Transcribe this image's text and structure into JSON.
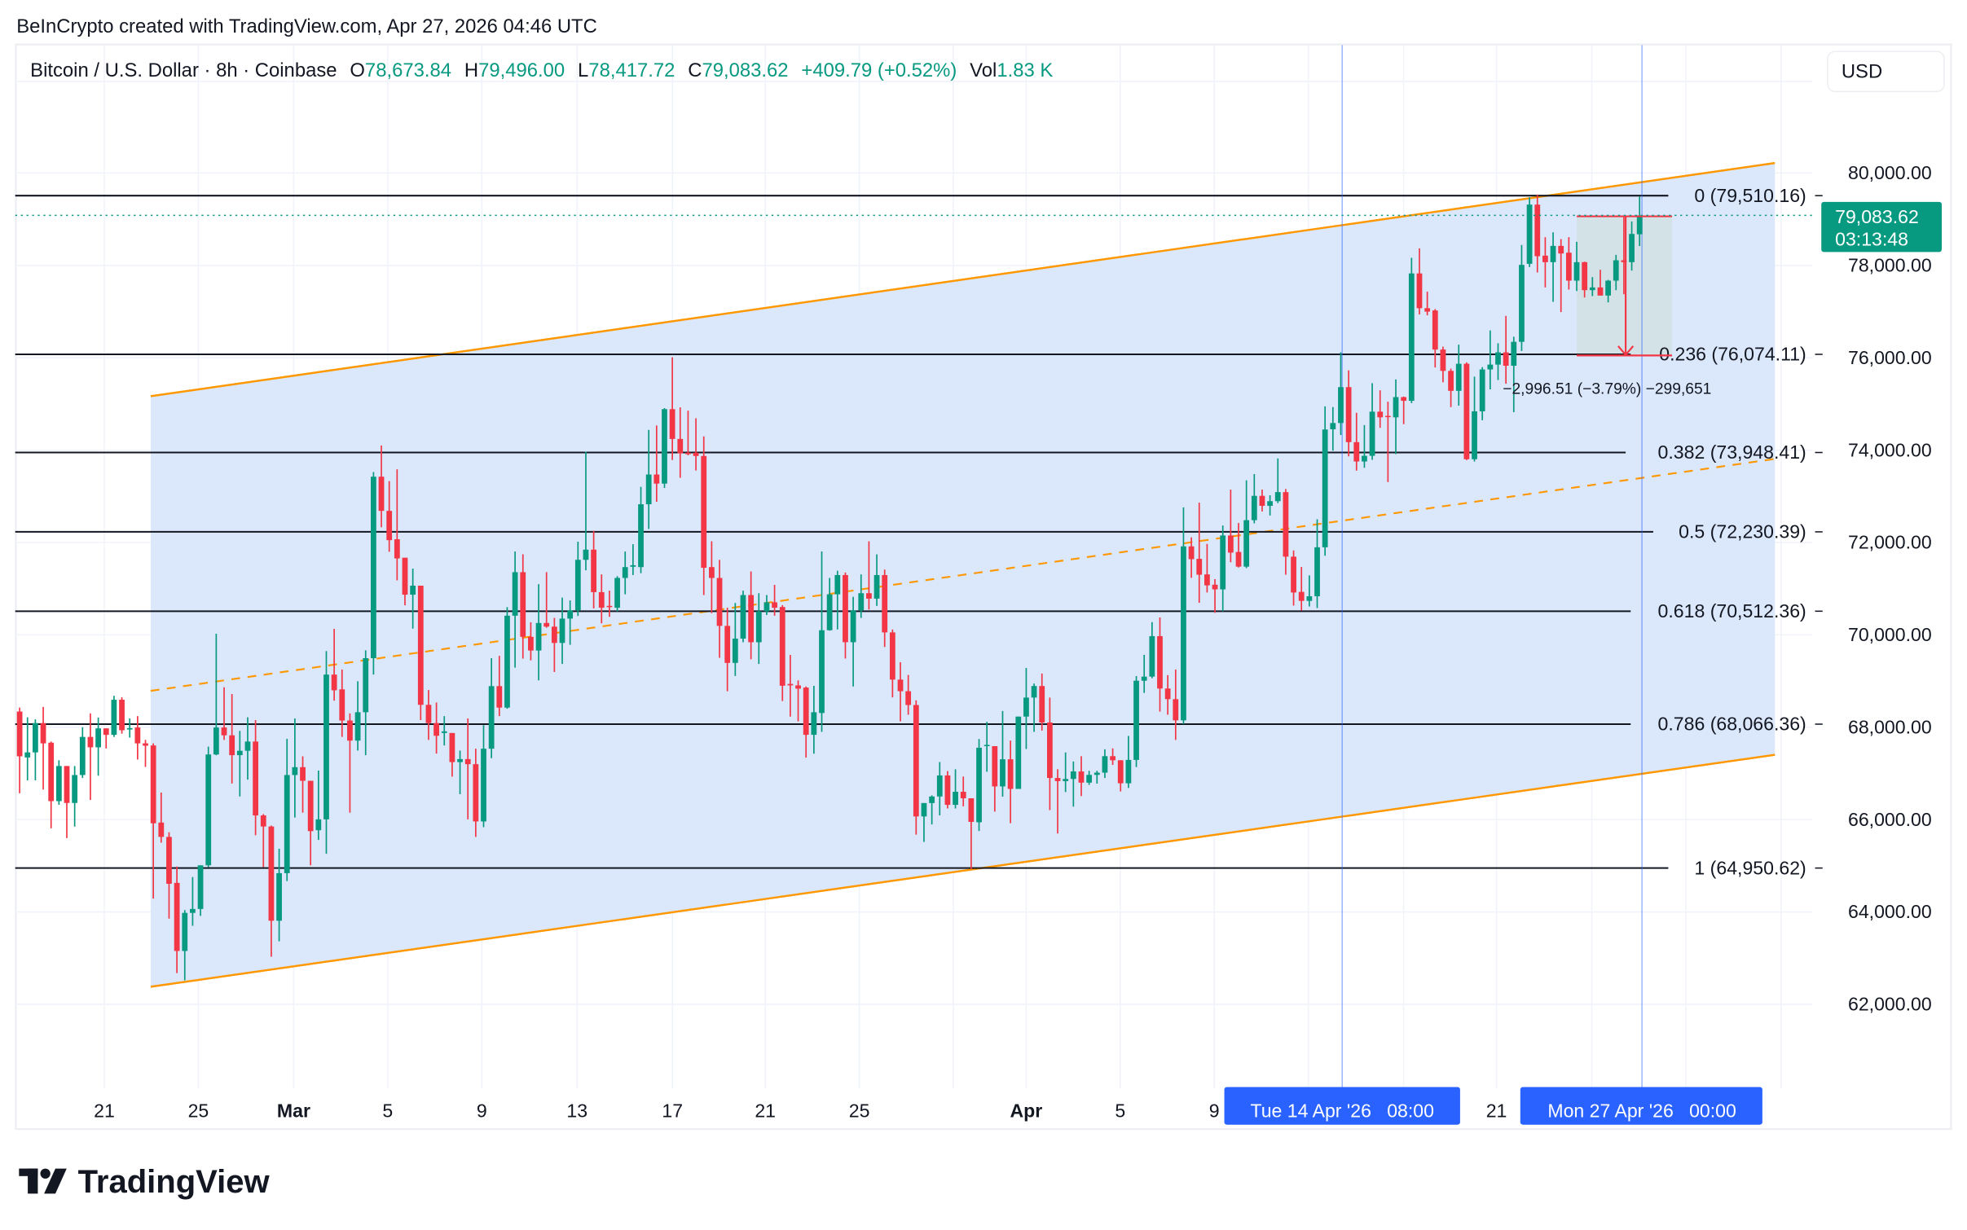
{
  "header": {
    "attribution": "BeInCrypto created with TradingView.com, Apr 27, 2026 04:46 UTC"
  },
  "legend": {
    "symbol": "Bitcoin / U.S. Dollar · 8h · Coinbase",
    "o_label": "O",
    "o_value": "78,673.84",
    "h_label": "H",
    "h_value": "79,496.00",
    "l_label": "L",
    "l_value": "78,417.72",
    "c_label": "C",
    "c_value": "79,083.62",
    "change": "+409.79 (+0.52%)",
    "vol_label": "Vol",
    "vol_value": "1.83 K"
  },
  "currency_button": "USD",
  "current_price": {
    "value": 79083.62,
    "label": "79,083.62",
    "countdown": "03:13:48"
  },
  "measure": {
    "text": "−2,996.51 (−3.79%) −299,651"
  },
  "crosshair_labels": [
    "Tue 14 Apr '26   08:00",
    "Mon 27 Apr '26   00:00"
  ],
  "time_axis": [
    "21",
    "25",
    "Mar",
    "5",
    "9",
    "13",
    "17",
    "21",
    "25",
    "Apr",
    "5",
    "9",
    "21"
  ],
  "fib_levels": [
    {
      "ratio": 0,
      "price": 79510.16,
      "label": "0 (79,510.16)"
    },
    {
      "ratio": 0.236,
      "price": 76074.11,
      "label": "0.236 (76,074.11)"
    },
    {
      "ratio": 0.382,
      "price": 73948.41,
      "label": "0.382 (73,948.41)"
    },
    {
      "ratio": 0.5,
      "price": 72230.39,
      "label": "0.5 (72,230.39)"
    },
    {
      "ratio": 0.618,
      "price": 70512.36,
      "label": "0.618 (70,512.36)"
    },
    {
      "ratio": 0.786,
      "price": 68066.36,
      "label": "0.786 (68,066.36)"
    },
    {
      "ratio": 1,
      "price": 64950.62,
      "label": "1 (64,950.62)"
    }
  ],
  "logo": "TradingView",
  "colors": {
    "up": "#089981",
    "down": "#f23645",
    "channel": "#ff9800",
    "accent": "#2962ff"
  },
  "chart_data": {
    "type": "candlestick",
    "title": "Bitcoin / U.S. Dollar · 8h · Coinbase",
    "interval": "8h",
    "first_candle": "Feb 17 2026 08:00",
    "last_candle": "Apr 27 2026 00:00",
    "ylim": [
      60500,
      81500
    ],
    "y_ticks": [
      80000,
      78000,
      76000,
      74000,
      72000,
      70000,
      68000,
      66000,
      64000,
      62000
    ],
    "y_tick_labels": [
      "80,000.00",
      "78,000.00",
      "76,000.00",
      "74,000.00",
      "72,000.00",
      "70,000.00",
      "68,000.00",
      "66,000.00",
      "64,000.00",
      "62,000.00"
    ],
    "ohlc_fields": [
      "open",
      "high",
      "low",
      "close"
    ],
    "ohlc": [
      [
        68340,
        68425,
        66570,
        67370
      ],
      [
        67345,
        68215,
        66850,
        67455
      ],
      [
        67455,
        68170,
        66850,
        68090
      ],
      [
        68090,
        68440,
        66650,
        67650
      ],
      [
        67665,
        67690,
        65810,
        66400
      ],
      [
        66400,
        67285,
        66320,
        67160
      ],
      [
        67160,
        67160,
        65600,
        66360
      ],
      [
        66360,
        67160,
        65850,
        66965
      ],
      [
        66965,
        68000,
        66900,
        67790
      ],
      [
        67790,
        68300,
        66425,
        67565
      ],
      [
        67565,
        68210,
        66950,
        67975
      ],
      [
        67975,
        67975,
        67540,
        67835
      ],
      [
        67835,
        68680,
        67790,
        68595
      ],
      [
        68595,
        68650,
        67860,
        67935
      ],
      [
        67950,
        68190,
        67775,
        67980
      ],
      [
        67995,
        68240,
        67300,
        67650
      ],
      [
        67650,
        67725,
        67140,
        67600
      ],
      [
        67605,
        67650,
        64290,
        65920
      ],
      [
        65935,
        66585,
        65500,
        65625
      ],
      [
        65625,
        65725,
        63855,
        64610
      ],
      [
        64630,
        64985,
        62675,
        63155
      ],
      [
        63155,
        64040,
        62520,
        63980
      ],
      [
        63980,
        64755,
        63700,
        64065
      ],
      [
        64065,
        65010,
        63915,
        65010
      ],
      [
        65010,
        67580,
        64970,
        67410
      ],
      [
        67410,
        70025,
        67395,
        67995
      ],
      [
        67995,
        68865,
        67725,
        67825
      ],
      [
        67825,
        68720,
        66780,
        67395
      ],
      [
        67395,
        67920,
        66500,
        67490
      ],
      [
        67490,
        68215,
        66865,
        67690
      ],
      [
        67690,
        68155,
        65660,
        66090
      ],
      [
        66090,
        66120,
        64970,
        65850
      ],
      [
        65850,
        65870,
        63030,
        63810
      ],
      [
        63810,
        65370,
        63365,
        64840
      ],
      [
        64840,
        67750,
        64670,
        66965
      ],
      [
        66965,
        68190,
        66045,
        67135
      ],
      [
        67135,
        67370,
        66150,
        66840
      ],
      [
        66840,
        66840,
        65010,
        65750
      ],
      [
        65770,
        67060,
        65560,
        66005
      ],
      [
        66005,
        69650,
        65260,
        69140
      ],
      [
        69140,
        70130,
        68575,
        68800
      ],
      [
        68820,
        69250,
        67790,
        68145
      ],
      [
        68145,
        68300,
        66150,
        67710
      ],
      [
        67710,
        68995,
        67495,
        68325
      ],
      [
        68325,
        69665,
        67395,
        69495
      ],
      [
        69495,
        73525,
        69140,
        73425
      ],
      [
        73425,
        74100,
        72330,
        72685
      ],
      [
        72685,
        73330,
        71800,
        72050
      ],
      [
        72070,
        73585,
        71180,
        71655
      ],
      [
        71670,
        71670,
        70640,
        70870
      ],
      [
        70870,
        71435,
        70135,
        71065
      ],
      [
        71065,
        71065,
        68155,
        68485
      ],
      [
        68485,
        68805,
        67725,
        68090
      ],
      [
        68090,
        68535,
        67430,
        67815
      ],
      [
        67875,
        68240,
        67605,
        67910
      ],
      [
        67875,
        67875,
        66930,
        67245
      ],
      [
        67245,
        67495,
        66550,
        67310
      ],
      [
        67310,
        68190,
        66005,
        67200
      ],
      [
        67200,
        67535,
        65625,
        65960
      ],
      [
        65960,
        68045,
        65835,
        67535
      ],
      [
        67535,
        69495,
        67330,
        68890
      ],
      [
        68890,
        69545,
        68240,
        68425
      ],
      [
        68425,
        70600,
        68400,
        70415
      ],
      [
        70415,
        71805,
        69290,
        71357
      ],
      [
        71357,
        71743,
        69487,
        69958
      ],
      [
        69958,
        70273,
        69447,
        69660
      ],
      [
        69660,
        71098,
        69015,
        70257
      ],
      [
        70257,
        71358,
        70155,
        70178
      ],
      [
        70178,
        70367,
        69196,
        69825
      ],
      [
        69825,
        70807,
        69370,
        70352
      ],
      [
        70352,
        70745,
        69785,
        70532
      ],
      [
        70532,
        72018,
        70407,
        71625
      ],
      [
        71625,
        73967,
        71397,
        71845
      ],
      [
        71845,
        72253,
        70572,
        70925
      ],
      [
        70925,
        71310,
        70250,
        70587
      ],
      [
        70627,
        70957,
        70390,
        70603
      ],
      [
        70587,
        71270,
        70508,
        71232
      ],
      [
        71232,
        71805,
        70878,
        71467
      ],
      [
        71475,
        71963,
        71295,
        71507
      ],
      [
        71467,
        73205,
        71334,
        72828
      ],
      [
        72828,
        74439,
        72293,
        73472
      ],
      [
        73472,
        74533,
        72882,
        73275
      ],
      [
        73275,
        74910,
        73181,
        74887
      ],
      [
        74887,
        76010,
        73786,
        74242
      ],
      [
        74242,
        74926,
        73401,
        73928
      ],
      [
        73944,
        74855,
        73888,
        73912
      ],
      [
        73944,
        74690,
        73558,
        73873
      ],
      [
        73873,
        74297,
        70862,
        71452
      ],
      [
        71467,
        72026,
        70469,
        71232
      ],
      [
        71232,
        71624,
        69503,
        70194
      ],
      [
        70194,
        70587,
        68779,
        69393
      ],
      [
        69393,
        70690,
        69110,
        69919
      ],
      [
        69919,
        70957,
        69840,
        70862
      ],
      [
        70862,
        71373,
        69471,
        69840
      ],
      [
        69840,
        70902,
        69369,
        70509
      ],
      [
        70509,
        70862,
        70430,
        70705
      ],
      [
        70705,
        71082,
        70414,
        70587
      ],
      [
        70603,
        70643,
        68567,
        68898
      ],
      [
        68937,
        69565,
        68229,
        68906
      ],
      [
        68906,
        69015,
        68127,
        68835
      ],
      [
        68858,
        68882,
        67341,
        67836
      ],
      [
        67836,
        68897,
        67427,
        68324
      ],
      [
        68308,
        71806,
        67899,
        70100
      ],
      [
        70100,
        71232,
        70092,
        70878
      ],
      [
        70878,
        71389,
        70116,
        71295
      ],
      [
        71295,
        71350,
        69487,
        69841
      ],
      [
        69841,
        70823,
        68882,
        70532
      ],
      [
        70532,
        71310,
        70367,
        70902
      ],
      [
        70902,
        72026,
        70548,
        70784
      ],
      [
        70784,
        71743,
        70627,
        71295
      ],
      [
        71295,
        71413,
        69738,
        70053
      ],
      [
        70053,
        70116,
        68646,
        69031
      ],
      [
        69031,
        69408,
        68127,
        68780
      ],
      [
        68780,
        69133,
        68269,
        68481
      ],
      [
        68481,
        68583,
        65675,
        66068
      ],
      [
        66068,
        66358,
        65517,
        66358
      ],
      [
        66358,
        66524,
        65895,
        66500
      ],
      [
        66500,
        67247,
        66091,
        66956
      ],
      [
        66956,
        67050,
        66241,
        66319
      ],
      [
        66319,
        67089,
        66241,
        66602
      ],
      [
        66602,
        66932,
        66288,
        66461
      ],
      [
        66461,
        66461,
        64932,
        65950
      ],
      [
        65942,
        67745,
        65753,
        67556
      ],
      [
        67590,
        68116,
        67036,
        67617
      ],
      [
        67590,
        67590,
        66172,
        66718
      ],
      [
        66718,
        68352,
        66496,
        67306
      ],
      [
        67306,
        67711,
        65922,
        66664
      ],
      [
        66664,
        68230,
        66664,
        68230
      ],
      [
        68230,
        69283,
        67528,
        68642
      ],
      [
        68642,
        68946,
        67900,
        68892
      ],
      [
        68892,
        69162,
        67927,
        68102
      ],
      [
        68102,
        68642,
        66205,
        66901
      ],
      [
        66901,
        67090,
        65699,
        66833
      ],
      [
        66833,
        67454,
        66597,
        66880
      ],
      [
        66880,
        67258,
        66280,
        67042
      ],
      [
        67042,
        67373,
        66509,
        66800
      ],
      [
        66800,
        67056,
        66752,
        66968
      ],
      [
        66968,
        67056,
        66779,
        67016
      ],
      [
        67016,
        67522,
        66901,
        67373
      ],
      [
        67373,
        67542,
        67184,
        67285
      ],
      [
        67285,
        67285,
        66610,
        66786
      ],
      [
        66786,
        67812,
        66685,
        67292
      ],
      [
        67292,
        69108,
        67137,
        69007
      ],
      [
        69007,
        69567,
        68743,
        69095
      ],
      [
        69095,
        70276,
        69061,
        69972
      ],
      [
        69972,
        70377,
        68338,
        68838
      ],
      [
        68838,
        69128,
        68271,
        68608
      ],
      [
        68608,
        69250,
        67724,
        68149
      ],
      [
        68149,
        72760,
        68068,
        71916
      ],
      [
        71916,
        72112,
        71234,
        71639
      ],
      [
        71646,
        72861,
        70694,
        71302
      ],
      [
        71309,
        71970,
        70917,
        71072
      ],
      [
        71086,
        71207,
        70478,
        70985
      ],
      [
        70985,
        72368,
        70512,
        72152
      ],
      [
        72152,
        73145,
        71572,
        71781
      ],
      [
        71795,
        72422,
        71457,
        71477
      ],
      [
        71477,
        73347,
        71443,
        72483
      ],
      [
        72483,
        73482,
        72415,
        73010
      ],
      [
        73010,
        73145,
        72672,
        72794
      ],
      [
        72794,
        73023,
        72584,
        72895
      ],
      [
        72895,
        73820,
        72854,
        73091
      ],
      [
        73091,
        73158,
        71302,
        71693
      ],
      [
        71693,
        71828,
        70634,
        70917
      ],
      [
        70930,
        71470,
        70525,
        70735
      ],
      [
        70735,
        71288,
        70613,
        70836
      ],
      [
        70836,
        72503,
        70580,
        71896
      ],
      [
        71896,
        74947,
        71714,
        74447
      ],
      [
        74451,
        74932,
        73988,
        74587
      ],
      [
        74587,
        76117,
        74327,
        75364
      ],
      [
        75364,
        75728,
        73865,
        74173
      ],
      [
        74173,
        74809,
        73556,
        73754
      ],
      [
        73754,
        74543,
        73618,
        73877
      ],
      [
        73877,
        75450,
        73790,
        74833
      ],
      [
        74833,
        75296,
        74482,
        74710
      ],
      [
        74741,
        75049,
        73309,
        74716
      ],
      [
        74710,
        75531,
        73914,
        75148
      ],
      [
        75148,
        75160,
        74562,
        75068
      ],
      [
        75068,
        78165,
        75018,
        77826
      ],
      [
        77826,
        78369,
        76937,
        77073
      ],
      [
        77073,
        77431,
        76919,
        76999
      ],
      [
        77024,
        77055,
        75790,
        76178
      ],
      [
        76178,
        76240,
        75469,
        75716
      ],
      [
        75716,
        75765,
        74932,
        75284
      ],
      [
        75284,
        76283,
        74963,
        75870
      ],
      [
        75870,
        75901,
        73784,
        73803
      ],
      [
        73803,
        75592,
        73753,
        74840
      ],
      [
        74840,
        75796,
        74648,
        75747
      ],
      [
        75747,
        76592,
        75315,
        75852
      ],
      [
        75852,
        76314,
        75518,
        76117
      ],
      [
        76117,
        76907,
        75438,
        75827
      ],
      [
        75827,
        76456,
        74821,
        76345
      ],
      [
        76345,
        78443,
        76147,
        78011
      ],
      [
        78034,
        79475,
        77964,
        79316
      ],
      [
        79316,
        79534,
        77846,
        78199
      ],
      [
        78211,
        78611,
        77523,
        78070
      ],
      [
        78070,
        78716,
        77211,
        78422
      ],
      [
        78422,
        78570,
        76988,
        78258
      ],
      [
        78275,
        78611,
        77476,
        77670
      ],
      [
        77670,
        78511,
        77446,
        78070
      ],
      [
        78070,
        78081,
        77305,
        77464
      ],
      [
        77464,
        77746,
        77335,
        77523
      ],
      [
        77523,
        77905,
        77347,
        77347
      ],
      [
        77347,
        77687,
        77200,
        77670
      ],
      [
        77670,
        78228,
        77464,
        78111
      ],
      [
        78111,
        79081,
        77376,
        78070
      ],
      [
        78070,
        78952,
        77887,
        78681
      ],
      [
        78674,
        79496,
        78418,
        79084
      ]
    ]
  }
}
